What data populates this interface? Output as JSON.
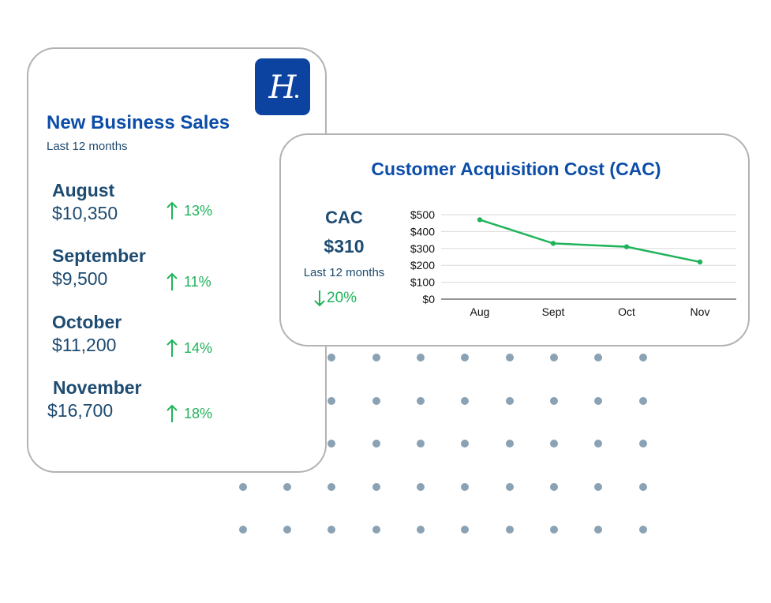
{
  "sales_card": {
    "logo_letter": "H",
    "title": "New Business Sales",
    "subtitle": "Last 12 months",
    "months": [
      {
        "name": "August",
        "value": "$10,350",
        "change": "13%"
      },
      {
        "name": "September",
        "value": "$9,500",
        "change": "11%"
      },
      {
        "name": "October",
        "value": "$11,200",
        "change": "14%"
      },
      {
        "name": "November",
        "value": "$16,700",
        "change": "18%"
      }
    ]
  },
  "cac_card": {
    "title": "Customer Acquisition Cost (CAC)",
    "label": "CAC",
    "value": "$310",
    "period": "Last 12 months",
    "change": "20%",
    "change_direction": "down"
  },
  "colors": {
    "brand_blue": "#0c43a0",
    "title_blue": "#0c4da8",
    "text_navy": "#1d4b71",
    "positive_green": "#20b35a",
    "dot_gray": "#8aa2b3"
  },
  "chart_data": {
    "type": "line",
    "categories": [
      "Aug",
      "Sept",
      "Oct",
      "Nov"
    ],
    "series": [
      {
        "values": [
          470,
          330,
          310,
          220
        ]
      }
    ],
    "y_ticks": [
      "$0",
      "$100",
      "$200",
      "$300",
      "$400",
      "$500"
    ],
    "ylim": [
      0,
      500
    ],
    "grid": true,
    "legend": "none"
  }
}
